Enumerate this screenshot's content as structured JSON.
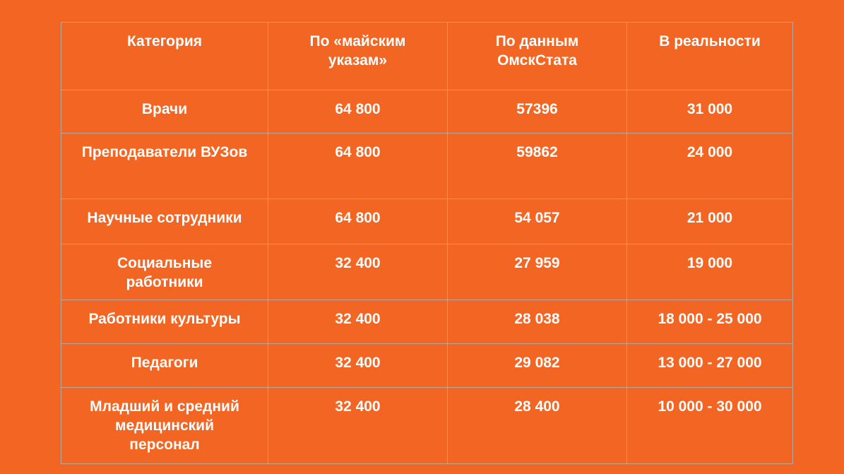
{
  "table": {
    "headers": [
      "Категория",
      "По «майским\nуказам»",
      "По данным\nОмскСтата",
      "В реальности"
    ],
    "rows": [
      [
        "Врачи",
        "64 800",
        "57396",
        "31 000"
      ],
      [
        "Преподаватели ВУЗов",
        "64 800",
        "59862",
        "24 000"
      ],
      [
        "Научные сотрудники",
        "64 800",
        "54 057",
        "21 000"
      ],
      [
        "Социальные\nработники",
        "32 400",
        "27 959",
        "19 000"
      ],
      [
        "Работники культуры",
        "32 400",
        "28 038",
        "18 000 - 25 000"
      ],
      [
        "Педагоги",
        "32 400",
        "29 082",
        "13 000 - 27 000"
      ],
      [
        "Младший и средний\nмедицинский\nперсонал",
        "32 400",
        "28 400",
        "10 000 - 30 000"
      ]
    ]
  },
  "colors": {
    "background": "#F26522",
    "text": "#FFFFFF",
    "grid": "#B9A79B"
  }
}
